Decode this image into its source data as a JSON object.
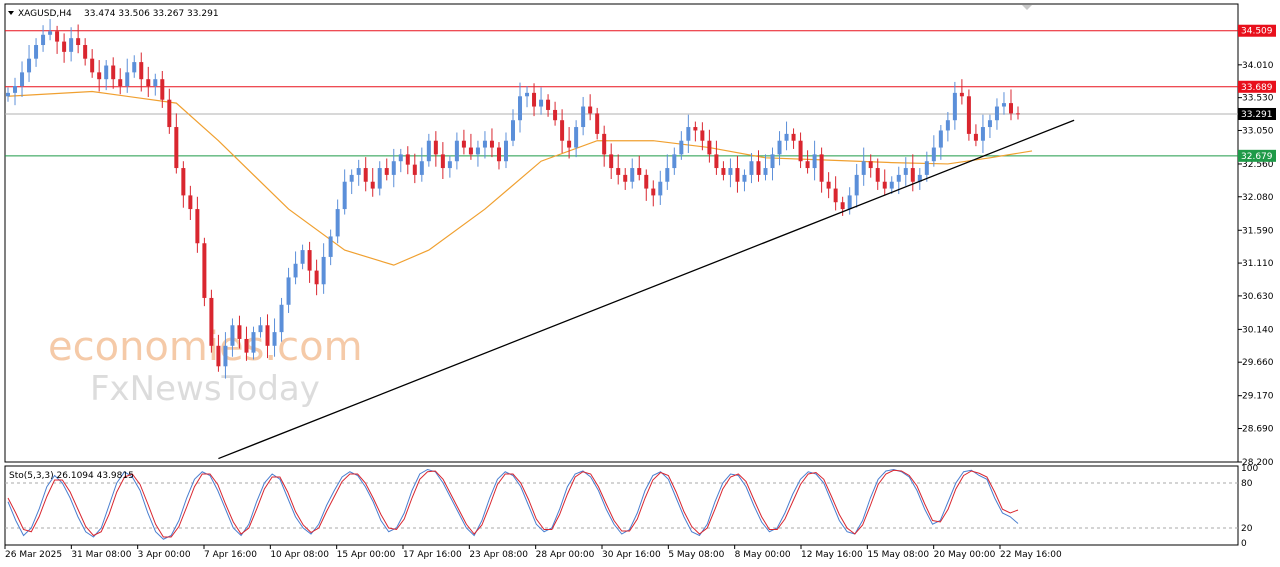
{
  "chart_data": {
    "type": "candlestick",
    "symbol_header": "XAGUSD,H4",
    "ohlc_header": "33.474 33.506 33.267 33.291",
    "price_axis": {
      "min": 28.2,
      "max": 34.9,
      "ticks": [
        "34.010",
        "33.530",
        "33.050",
        "32.560",
        "32.080",
        "31.590",
        "31.110",
        "30.630",
        "30.140",
        "29.660",
        "29.170",
        "28.690",
        "28.200"
      ]
    },
    "price_levels": [
      {
        "label": "34.509",
        "value": 34.509,
        "color": "#e8101c",
        "role": "resistance"
      },
      {
        "label": "33.689",
        "value": 33.689,
        "color": "#e8101c",
        "role": "resistance"
      },
      {
        "label": "33.291",
        "value": 33.291,
        "color": "#b0b0b0",
        "role": "current-price"
      },
      {
        "label": "32.679",
        "value": 32.679,
        "color": "#1e9a48",
        "role": "support"
      }
    ],
    "x_labels": [
      "26 Mar 2025",
      "31 Mar 08:00",
      "3 Apr 00:00",
      "7 Apr 16:00",
      "10 Apr 08:00",
      "15 Apr 00:00",
      "17 Apr 16:00",
      "23 Apr 08:00",
      "28 Apr 00:00",
      "30 Apr 16:00",
      "5 May 08:00",
      "8 May 00:00",
      "12 May 16:00",
      "15 May 08:00",
      "20 May 00:00",
      "22 May 16:00"
    ],
    "closes": [
      33.6,
      33.7,
      33.9,
      34.1,
      34.3,
      34.45,
      34.5,
      34.35,
      34.2,
      34.4,
      34.3,
      34.1,
      33.9,
      33.8,
      34.0,
      33.8,
      33.7,
      33.9,
      34.05,
      33.8,
      33.7,
      33.8,
      33.5,
      33.1,
      32.5,
      32.1,
      31.9,
      31.4,
      30.6,
      29.9,
      29.6,
      29.9,
      30.2,
      30.0,
      29.8,
      30.1,
      30.2,
      29.9,
      30.1,
      30.5,
      30.9,
      31.1,
      31.3,
      31.0,
      30.8,
      31.2,
      31.5,
      31.9,
      32.3,
      32.4,
      32.5,
      32.3,
      32.2,
      32.5,
      32.4,
      32.6,
      32.7,
      32.55,
      32.4,
      32.6,
      32.9,
      32.7,
      32.5,
      32.6,
      32.9,
      32.8,
      32.7,
      32.8,
      32.9,
      32.8,
      32.6,
      32.9,
      33.2,
      33.55,
      33.6,
      33.4,
      33.5,
      33.35,
      33.2,
      32.9,
      32.8,
      33.1,
      33.4,
      33.3,
      33.0,
      32.7,
      32.5,
      32.4,
      32.3,
      32.5,
      32.4,
      32.2,
      32.1,
      32.3,
      32.5,
      32.7,
      32.9,
      33.1,
      33.05,
      32.9,
      32.7,
      32.5,
      32.4,
      32.5,
      32.3,
      32.4,
      32.6,
      32.4,
      32.5,
      32.7,
      32.9,
      33.0,
      32.9,
      32.6,
      32.5,
      32.7,
      32.3,
      32.2,
      32.0,
      31.9,
      32.1,
      32.4,
      32.6,
      32.5,
      32.3,
      32.2,
      32.3,
      32.4,
      32.5,
      32.3,
      32.4,
      32.6,
      32.8,
      33.05,
      33.2,
      33.6,
      33.55,
      33.0,
      32.9,
      33.1,
      33.2,
      33.4,
      33.45,
      33.3,
      33.291
    ],
    "moving_average": [
      {
        "i": 0,
        "v": 33.55
      },
      {
        "i": 12,
        "v": 33.62
      },
      {
        "i": 24,
        "v": 33.45
      },
      {
        "i": 30,
        "v": 32.9
      },
      {
        "i": 40,
        "v": 31.9
      },
      {
        "i": 48,
        "v": 31.3
      },
      {
        "i": 55,
        "v": 31.08
      },
      {
        "i": 60,
        "v": 31.3
      },
      {
        "i": 68,
        "v": 31.9
      },
      {
        "i": 76,
        "v": 32.6
      },
      {
        "i": 84,
        "v": 32.9
      },
      {
        "i": 92,
        "v": 32.9
      },
      {
        "i": 100,
        "v": 32.8
      },
      {
        "i": 108,
        "v": 32.65
      },
      {
        "i": 116,
        "v": 32.62
      },
      {
        "i": 126,
        "v": 32.58
      },
      {
        "i": 134,
        "v": 32.56
      },
      {
        "i": 140,
        "v": 32.65
      },
      {
        "i": 146,
        "v": 32.75
      }
    ],
    "trendline": {
      "from": {
        "i": 30,
        "v": 28.25
      },
      "to": {
        "i": 152,
        "v": 33.2
      }
    },
    "stochastic": {
      "label": "Sto(5,3,3) 26.1094 43.9815",
      "ticks": [
        "100",
        "80",
        "20",
        "0"
      ],
      "levels": [
        80,
        20
      ],
      "main": [
        55,
        30,
        10,
        20,
        45,
        75,
        90,
        80,
        60,
        35,
        15,
        8,
        20,
        50,
        80,
        95,
        88,
        70,
        40,
        15,
        5,
        10,
        30,
        60,
        85,
        95,
        90,
        70,
        45,
        20,
        10,
        25,
        55,
        80,
        92,
        85,
        60,
        35,
        20,
        12,
        25,
        50,
        70,
        88,
        95,
        90,
        75,
        55,
        30,
        15,
        20,
        40,
        70,
        92,
        98,
        95,
        80,
        60,
        40,
        20,
        10,
        30,
        60,
        85,
        95,
        90,
        75,
        50,
        25,
        15,
        20,
        45,
        75,
        92,
        96,
        88,
        70,
        45,
        25,
        12,
        18,
        40,
        70,
        90,
        95,
        85,
        60,
        35,
        15,
        10,
        25,
        55,
        80,
        92,
        90,
        75,
        50,
        28,
        15,
        20,
        40,
        65,
        85,
        95,
        92,
        80,
        55,
        30,
        15,
        12,
        30,
        60,
        85,
        96,
        98,
        95,
        88,
        70,
        45,
        25,
        30,
        55,
        80,
        95,
        97,
        90,
        85,
        60,
        40,
        35,
        26
      ],
      "signal": [
        60,
        40,
        18,
        15,
        35,
        62,
        84,
        84,
        68,
        45,
        22,
        10,
        15,
        38,
        68,
        88,
        92,
        78,
        52,
        25,
        8,
        8,
        22,
        48,
        75,
        92,
        92,
        78,
        52,
        28,
        12,
        20,
        45,
        72,
        88,
        88,
        68,
        42,
        24,
        14,
        20,
        42,
        62,
        82,
        92,
        92,
        80,
        60,
        38,
        20,
        18,
        32,
        60,
        85,
        95,
        96,
        85,
        65,
        45,
        25,
        12,
        24,
        50,
        78,
        92,
        92,
        80,
        58,
        32,
        18,
        18,
        38,
        65,
        88,
        95,
        92,
        75,
        52,
        30,
        16,
        16,
        32,
        60,
        84,
        94,
        90,
        68,
        42,
        22,
        12,
        20,
        45,
        72,
        88,
        92,
        82,
        58,
        35,
        18,
        18,
        32,
        55,
        78,
        92,
        94,
        85,
        62,
        38,
        20,
        12,
        24,
        50,
        78,
        92,
        97,
        96,
        90,
        76,
        52,
        30,
        28,
        45,
        72,
        90,
        96,
        93,
        88,
        68,
        45,
        40,
        43.98
      ]
    }
  }
}
